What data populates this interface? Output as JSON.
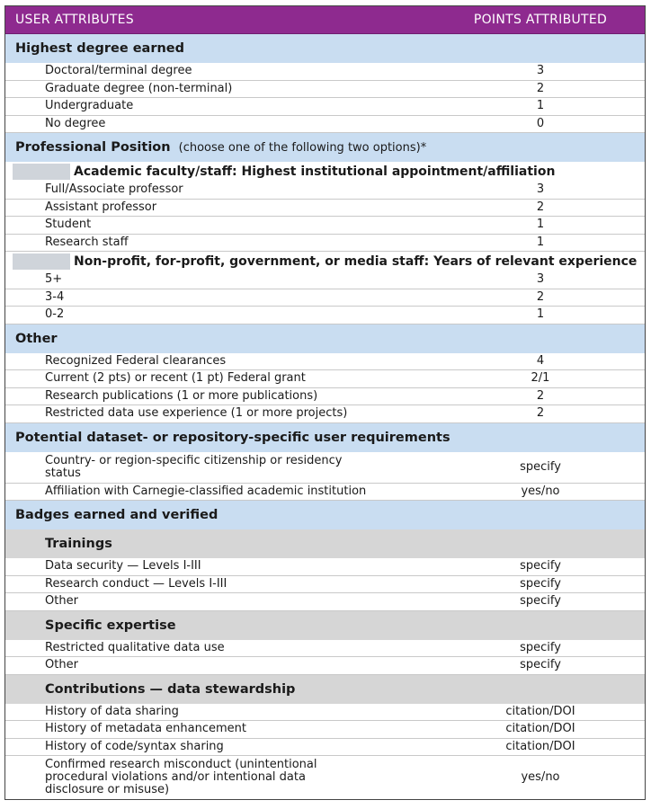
{
  "header": {
    "col1": "USER ATTRIBUTES",
    "col2": "POINTS ATTRIBUTED"
  },
  "degree": {
    "title": "Highest degree earned",
    "items": [
      {
        "label": "Doctoral/terminal degree",
        "value": "3"
      },
      {
        "label": "Graduate degree (non-terminal)",
        "value": "2"
      },
      {
        "label": "Undergraduate",
        "value": "1"
      },
      {
        "label": "No degree",
        "value": "0"
      }
    ]
  },
  "position": {
    "title": "Professional Position",
    "note": "(choose one of the following two options)*",
    "academic_title": "Academic faculty/staff: Highest institutional appointment/affiliation",
    "academic_items": [
      {
        "label": "Full/Associate professor",
        "value": "3"
      },
      {
        "label": "Assistant professor",
        "value": "2"
      },
      {
        "label": "Student",
        "value": "1"
      },
      {
        "label": "Research staff",
        "value": "1"
      }
    ],
    "nonprofit_title": "Non-profit, for-profit, government, or media staff: Years of relevant experience",
    "nonprofit_items": [
      {
        "label": "5+",
        "value": "3"
      },
      {
        "label": "3-4",
        "value": "2"
      },
      {
        "label": "0-2",
        "value": "1"
      }
    ]
  },
  "other": {
    "title": "Other",
    "items": [
      {
        "label": "Recognized Federal clearances",
        "value": "4"
      },
      {
        "label": "Current (2 pts) or recent (1 pt) Federal grant",
        "value": "2/1"
      },
      {
        "label": "Research publications (1 or more publications)",
        "value": "2"
      },
      {
        "label": "Restricted data use experience (1 or more projects)",
        "value": "2"
      }
    ]
  },
  "dataset": {
    "title": "Potential dataset- or repository-specific user requirements",
    "items": [
      {
        "label": "Country- or region-specific citizenship or residency status",
        "value": "specify"
      },
      {
        "label": "Affiliation with Carnegie-classified academic institution",
        "value": "yes/no"
      }
    ]
  },
  "badges": {
    "title": "Badges earned and verified",
    "trainings": {
      "title": "Trainings",
      "items": [
        {
          "label": "Data security — Levels I-III",
          "value": "specify"
        },
        {
          "label": "Research conduct — Levels I-III",
          "value": "specify"
        },
        {
          "label": "Other",
          "value": "specify"
        }
      ]
    },
    "expertise": {
      "title": "Specific expertise",
      "items": [
        {
          "label": "Restricted qualitative data use",
          "value": "specify"
        },
        {
          "label": "Other",
          "value": "specify"
        }
      ]
    },
    "contributions": {
      "title": "Contributions — data stewardship",
      "items": [
        {
          "label": "History of data sharing",
          "value": "citation/DOI"
        },
        {
          "label": "History of metadata enhancement",
          "value": "citation/DOI"
        },
        {
          "label": "History of code/syntax sharing",
          "value": "citation/DOI"
        },
        {
          "label": "Confirmed research misconduct (unintentional procedural violations and/or intentional data disclosure or misuse)",
          "value": "yes/no"
        }
      ]
    }
  }
}
